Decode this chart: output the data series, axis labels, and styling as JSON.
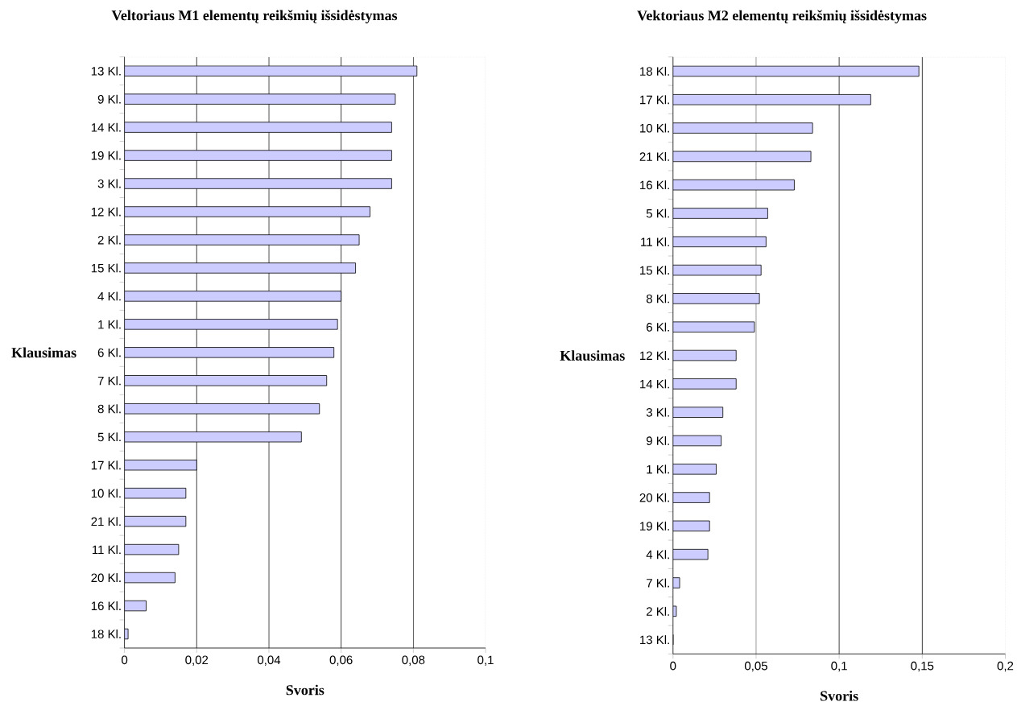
{
  "chart_data": [
    {
      "type": "bar",
      "orientation": "horizontal",
      "title": "Veltoriaus M1 elementų reikšmių išsidėstymas",
      "xlabel": "Svoris",
      "ylabel": "Klausimas",
      "categories": [
        "13 Kl.",
        "9 Kl.",
        "14 Kl.",
        "19 Kl.",
        "3 Kl.",
        "12 Kl.",
        "2 Kl.",
        "15 Kl.",
        "4 Kl.",
        "1 Kl.",
        "6 Kl.",
        "7 Kl.",
        "8 Kl.",
        "5 Kl.",
        "17 Kl.",
        "10 Kl.",
        "21 Kl.",
        "11 Kl.",
        "20 Kl.",
        "16 Kl.",
        "18 Kl."
      ],
      "values": [
        0.081,
        0.075,
        0.074,
        0.074,
        0.074,
        0.068,
        0.065,
        0.064,
        0.06,
        0.059,
        0.058,
        0.056,
        0.054,
        0.049,
        0.02,
        0.017,
        0.017,
        0.015,
        0.014,
        0.006,
        0.001
      ],
      "color": "#ccccff",
      "xlim": [
        0,
        0.1
      ],
      "xticks": [
        0,
        {
          "value": 0.02,
          "label": "0,02"
        },
        {
          "value": 0.04,
          "label": "0,04"
        },
        {
          "value": 0.06,
          "label": "0,06"
        },
        {
          "value": 0.08,
          "label": "0,08"
        },
        {
          "value": 0.1,
          "label": "0,1"
        }
      ],
      "grid": "x"
    },
    {
      "type": "bar",
      "orientation": "horizontal",
      "title": "Vektoriaus M2 elementų reikšmių išsidėstymas",
      "xlabel": "Svoris",
      "ylabel": "Klausimas",
      "categories": [
        "18 Kl.",
        "17 Kl.",
        "10 Kl.",
        "21 Kl.",
        "16 Kl.",
        "5 Kl.",
        "11 Kl.",
        "15 Kl.",
        "8 Kl.",
        "6 Kl.",
        "12 Kl.",
        "14 Kl.",
        "3 Kl.",
        "9 Kl.",
        "1 Kl.",
        "20 Kl.",
        "19 Kl.",
        "4 Kl.",
        "7 Kl.",
        "2 Kl.",
        "13 Kl."
      ],
      "values": [
        0.148,
        0.119,
        0.084,
        0.083,
        0.073,
        0.057,
        0.056,
        0.053,
        0.052,
        0.049,
        0.038,
        0.038,
        0.03,
        0.029,
        0.026,
        0.022,
        0.022,
        0.021,
        0.004,
        0.002,
        0
      ],
      "color": "#ccccff",
      "xlim": [
        0,
        0.2
      ],
      "xticks": [
        0,
        {
          "value": 0.05,
          "label": "0,05"
        },
        {
          "value": 0.1,
          "label": "0,1"
        },
        {
          "value": 0.15,
          "label": "0,15"
        },
        {
          "value": 0.2,
          "label": "0,2"
        }
      ],
      "grid": "x"
    }
  ]
}
